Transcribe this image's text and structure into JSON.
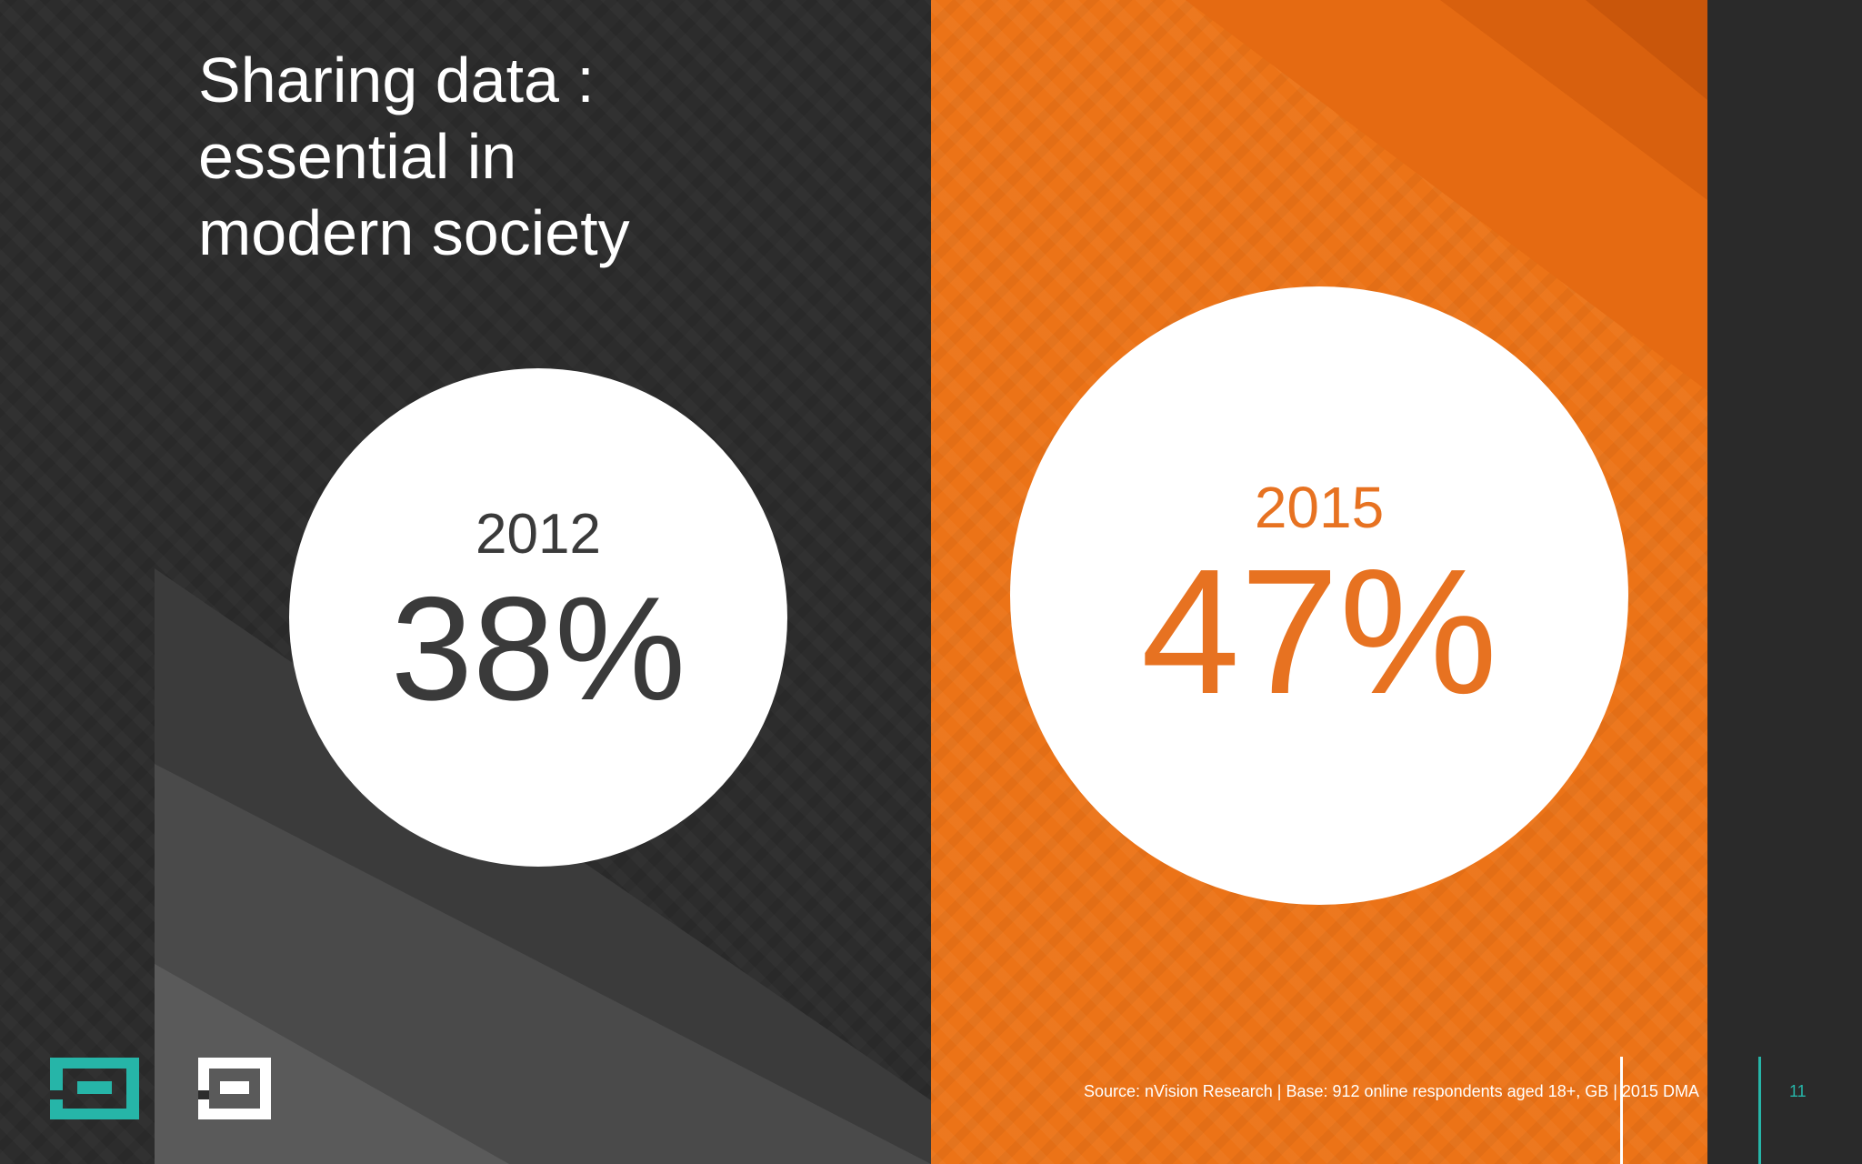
{
  "slide": {
    "title": "Sharing data :\nessential in\nmodern society",
    "stats": [
      {
        "year": "2012",
        "value": "38%"
      },
      {
        "year": "2015",
        "value": "47%"
      }
    ],
    "source": "Source: nVision Research | Base: 912 online respondents aged 18+, GB | 2015 DMA",
    "page_number": "11"
  },
  "colors": {
    "background": "#2c2c2c",
    "orange": "#ec7317",
    "teal": "#26b5a8",
    "white": "#ffffff",
    "dark_text": "#3a3a3a"
  },
  "icons": {
    "logo_left": "dma-logo-teal",
    "logo_right": "dma-logo-white"
  }
}
